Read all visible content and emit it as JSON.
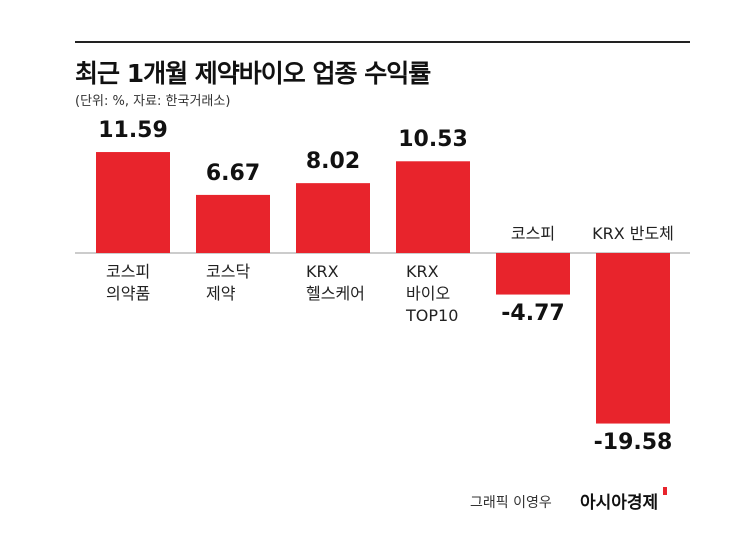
{
  "chart_data": {
    "type": "bar",
    "title": "최근 1개월 제약바이오 업종 수익률",
    "subtitle": "(단위: %, 자료: 한국거래소)",
    "categories": [
      "코스피\n의약품",
      "코스닥\n제약",
      "KRX\n헬스케어",
      "KRX\n바이오\nTOP10",
      "코스피",
      "KRX 반도체"
    ],
    "values": [
      11.59,
      6.67,
      8.02,
      10.53,
      -4.77,
      -19.58
    ],
    "color": "#e8242c",
    "credit": "그래픽 이영우",
    "publisher": "아시아경제"
  }
}
